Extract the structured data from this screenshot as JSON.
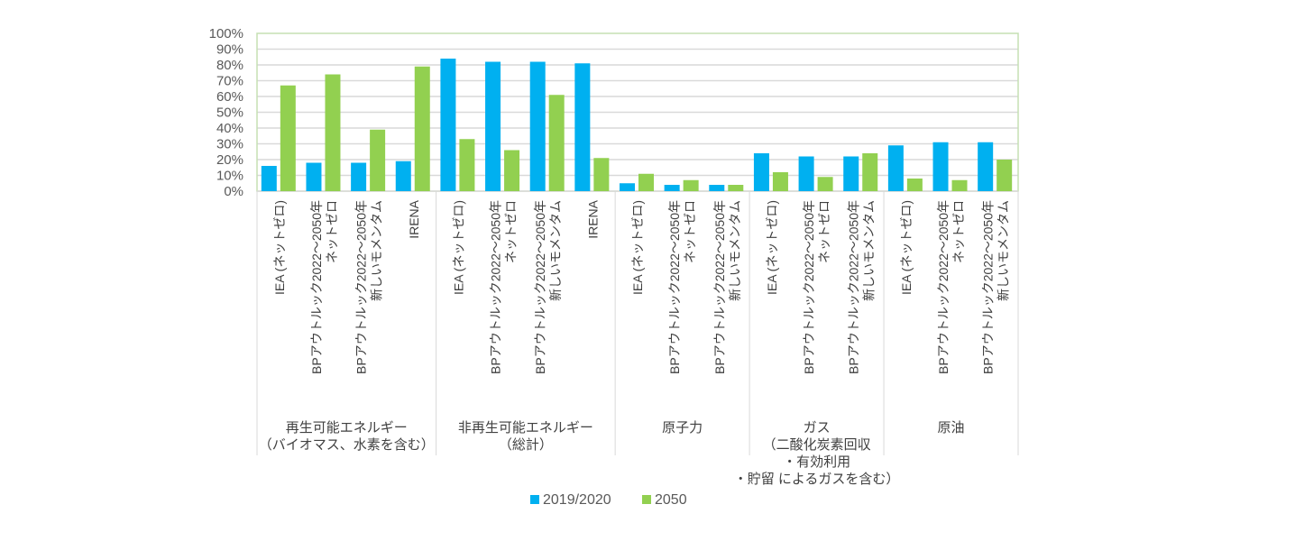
{
  "chart_data": {
    "type": "bar",
    "title": "",
    "xlabel": "",
    "ylabel": "",
    "ylim": [
      0,
      100
    ],
    "y_ticks": [
      "0%",
      "10%",
      "20%",
      "30%",
      "40%",
      "50%",
      "60%",
      "70%",
      "80%",
      "90%",
      "100%"
    ],
    "grid": true,
    "legend_position": "bottom",
    "groups": [
      {
        "label_lines": [
          "再生可能エネルギー",
          "（バイオマス、水素を含む）"
        ],
        "categories": [
          [
            "IEA (ネットゼロ)"
          ],
          [
            "BPアウトルック2022～2050年",
            "ネットゼロ"
          ],
          [
            "BPアウトルック2022～2050年",
            "新しいモメンタム"
          ],
          [
            "IRENA"
          ]
        ]
      },
      {
        "label_lines": [
          "非再生可能エネルギー",
          "（総計）"
        ],
        "categories": [
          [
            "IEA (ネットゼロ)"
          ],
          [
            "BPアウトルック2022～2050年",
            "ネットゼロ"
          ],
          [
            "BPアウトルック2022～2050年",
            "新しいモメンタム"
          ],
          [
            "IRENA"
          ]
        ]
      },
      {
        "label_lines": [
          "原子力"
        ],
        "categories": [
          [
            "IEA (ネットゼロ)"
          ],
          [
            "BPアウトルック2022～2050年",
            "ネットゼロ"
          ],
          [
            "BPアウトルック2022～2050年",
            "新しいモメンタム"
          ]
        ]
      },
      {
        "label_lines": [
          "ガス",
          "（二酸化炭素回収",
          "・有効利用",
          "・貯留 によるガスを含む）"
        ],
        "categories": [
          [
            "IEA (ネットゼロ)"
          ],
          [
            "BPアウトルック2022～2050年",
            "ネットゼロ"
          ],
          [
            "BPアウトルック2022～2050年",
            "新しいモメンタム"
          ]
        ]
      },
      {
        "label_lines": [
          "原油"
        ],
        "categories": [
          [
            "IEA (ネットゼロ)"
          ],
          [
            "BPアウトルック2022～2050年",
            "ネットゼロ"
          ],
          [
            "BPアウトルック2022～2050年",
            "新しいモメンタム"
          ]
        ]
      }
    ],
    "series": [
      {
        "name": "2019/2020",
        "color": "#00B0F0",
        "values": [
          16,
          18,
          18,
          19,
          84,
          82,
          82,
          81,
          5,
          4,
          4,
          24,
          22,
          22,
          29,
          31,
          31
        ]
      },
      {
        "name": "2050",
        "color": "#92D050",
        "values": [
          67,
          74,
          39,
          79,
          33,
          26,
          61,
          21,
          11,
          7,
          4,
          12,
          9,
          24,
          8,
          7,
          20
        ]
      }
    ]
  },
  "colors": {
    "gridline": "#D9D9D9",
    "plot_border": "#C5E0B4",
    "category_divider": "#D9D9D9"
  }
}
